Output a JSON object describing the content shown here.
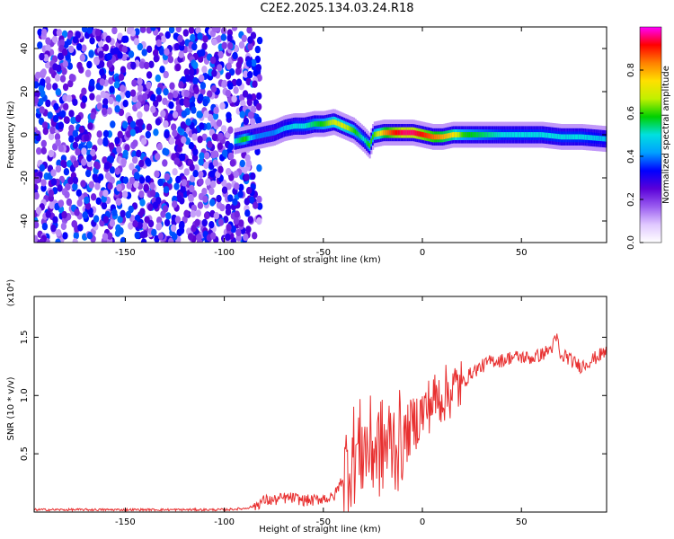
{
  "title": "C2E2.2025.134.03.24.R18",
  "colors": {
    "line": "#e83030",
    "cmap": [
      "#ffffff",
      "#e0c8ff",
      "#9a5cf0",
      "#5a00d8",
      "#0000ff",
      "#00a0ff",
      "#00e0e0",
      "#00d000",
      "#c0f000",
      "#ffe000",
      "#ff8000",
      "#ff0000",
      "#ff00ff"
    ]
  },
  "chart_data": [
    {
      "type": "heatmap",
      "title": "C2E2.2025.134.03.24.R18",
      "xlabel": "Height of straight line (km)",
      "ylabel": "Frequency (Hz)",
      "xlim": [
        -196,
        93
      ],
      "ylim": [
        -50,
        50
      ],
      "xticks": [
        -150,
        -100,
        -50,
        0,
        50
      ],
      "yticks": [
        -40,
        -20,
        0,
        20,
        40
      ],
      "colorbar": {
        "label": "Normalized spectral amplitude",
        "range": [
          0,
          1
        ],
        "ticks": [
          0.0,
          0.2,
          0.4,
          0.6,
          0.8
        ]
      },
      "ridge": {
        "x": [
          -95,
          -90,
          -85,
          -80,
          -75,
          -70,
          -65,
          -60,
          -55,
          -50,
          -45,
          -40,
          -35,
          -30,
          -27,
          -25,
          -20,
          -15,
          -10,
          -5,
          0,
          5,
          10,
          15,
          20,
          30,
          40,
          50,
          60,
          70,
          80,
          93
        ],
        "y": [
          -3,
          -2,
          -1,
          0,
          1,
          3,
          4,
          4,
          5,
          5,
          6,
          4,
          2,
          -2,
          -5,
          0,
          1,
          1,
          1,
          1,
          0,
          -1,
          -1,
          0,
          0,
          0,
          0,
          0,
          0,
          -1,
          -1,
          -2
        ],
        "amplitude": [
          0.5,
          0.6,
          0.4,
          0.4,
          0.4,
          0.45,
          0.5,
          0.5,
          0.55,
          0.6,
          0.7,
          0.7,
          0.6,
          0.5,
          0.6,
          0.6,
          0.8,
          0.9,
          0.95,
          0.95,
          0.9,
          0.85,
          0.8,
          0.75,
          0.6,
          0.55,
          0.5,
          0.5,
          0.5,
          0.5,
          0.5,
          0.45
        ]
      },
      "noise_region": {
        "x": [
          -196,
          -82
        ],
        "amplitude": [
          0.1,
          0.4
        ]
      }
    },
    {
      "type": "line",
      "xlabel": "Height of straight line (km)",
      "ylabel": "SNR (10 * v/v)",
      "scale_label": "(x10⁴)",
      "xlim": [
        -196,
        93
      ],
      "ylim": [
        0,
        1.85
      ],
      "xticks": [
        -150,
        -100,
        -50,
        0,
        50
      ],
      "yticks": [
        0.5,
        1.0,
        1.5
      ],
      "series": [
        {
          "x": [
            -196,
            -150,
            -100,
            -90,
            -85,
            -80,
            -75,
            -70,
            -65,
            -60,
            -55,
            -50,
            -45,
            -40,
            -35,
            -30,
            -25,
            -20,
            -15,
            -10,
            -5,
            0,
            5,
            10,
            15,
            20,
            25,
            30,
            35,
            40,
            45,
            50,
            55,
            60,
            65,
            68,
            70,
            72,
            75,
            80,
            85,
            90,
            93
          ],
          "y": [
            0.02,
            0.02,
            0.02,
            0.03,
            0.05,
            0.1,
            0.1,
            0.12,
            0.12,
            0.1,
            0.1,
            0.12,
            0.12,
            0.3,
            0.5,
            0.55,
            0.55,
            0.55,
            0.6,
            0.6,
            0.75,
            0.85,
            0.95,
            1.0,
            1.05,
            1.1,
            1.2,
            1.25,
            1.3,
            1.3,
            1.33,
            1.33,
            1.32,
            1.35,
            1.4,
            1.5,
            1.3,
            1.35,
            1.3,
            1.25,
            1.3,
            1.35,
            1.38
          ]
        }
      ]
    }
  ]
}
